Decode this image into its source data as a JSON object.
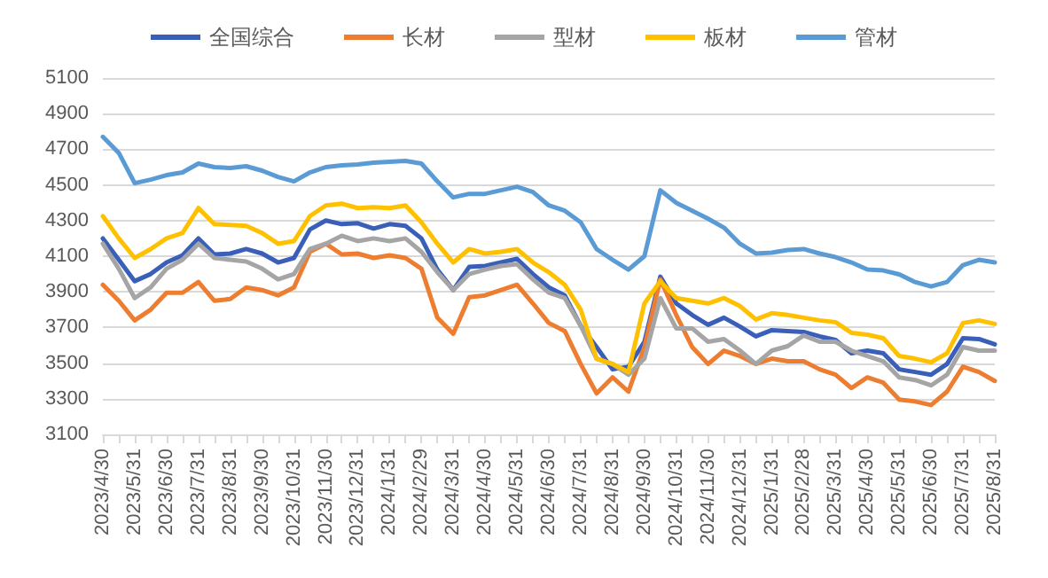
{
  "chart_data": {
    "type": "line",
    "categories": [
      "2023/4/30",
      null,
      "2023/5/31",
      null,
      "2023/6/30",
      null,
      "2023/7/31",
      null,
      "2023/8/31",
      null,
      "2023/9/30",
      null,
      "2023/10/31",
      null,
      "2023/11/30",
      null,
      "2023/12/31",
      null,
      "2024/1/31",
      null,
      "2024/2/29",
      null,
      "2024/3/31",
      null,
      "2024/4/30",
      null,
      "2024/5/31",
      null,
      "2024/6/30",
      null,
      "2024/7/31",
      null,
      "2024/8/31",
      null,
      "2024/9/30",
      null,
      "2024/10/31",
      null,
      "2024/11/30",
      null,
      "2024/12/31",
      null,
      "2025/1/31",
      null,
      "2025/2/28",
      null,
      "2025/3/31",
      null,
      "2025/4/30",
      null,
      "2025/5/31",
      null,
      "2025/6/30",
      null,
      "2025/7/31",
      null,
      "2025/8/31"
    ],
    "series": [
      {
        "name": "全国综合",
        "color": "#3a5fb8",
        "values": [
          4200,
          4080,
          3960,
          4000,
          4065,
          4105,
          4200,
          4110,
          4115,
          4140,
          4115,
          4065,
          4090,
          4250,
          4300,
          4280,
          4285,
          4255,
          4280,
          4270,
          4200,
          4025,
          3910,
          4040,
          4045,
          4065,
          4085,
          4000,
          3925,
          3880,
          3710,
          3590,
          3465,
          3480,
          3620,
          3985,
          3835,
          3770,
          3715,
          3755,
          3705,
          3650,
          3685,
          3680,
          3675,
          3650,
          3630,
          3555,
          3570,
          3555,
          3465,
          3450,
          3435,
          3495,
          3640,
          3635,
          3605
        ]
      },
      {
        "name": "长材",
        "color": "#ed7d31",
        "values": [
          3940,
          3850,
          3740,
          3800,
          3895,
          3895,
          3955,
          3850,
          3860,
          3925,
          3910,
          3880,
          3925,
          4125,
          4170,
          4110,
          4115,
          4090,
          4105,
          4090,
          4030,
          3755,
          3665,
          3870,
          3880,
          3910,
          3940,
          3835,
          3725,
          3680,
          3495,
          3330,
          3420,
          3340,
          3590,
          3970,
          3770,
          3590,
          3495,
          3570,
          3540,
          3495,
          3525,
          3510,
          3510,
          3465,
          3435,
          3360,
          3420,
          3390,
          3295,
          3285,
          3265,
          3340,
          3480,
          3450,
          3400
        ]
      },
      {
        "name": "型材",
        "color": "#a5a5a5",
        "values": [
          4170,
          4030,
          3865,
          3925,
          4030,
          4080,
          4170,
          4090,
          4080,
          4070,
          4030,
          3970,
          4000,
          4140,
          4170,
          4215,
          4185,
          4200,
          4185,
          4200,
          4125,
          4010,
          3910,
          4000,
          4025,
          4045,
          4055,
          3970,
          3895,
          3865,
          3710,
          3525,
          3495,
          3435,
          3525,
          3865,
          3695,
          3695,
          3620,
          3635,
          3570,
          3495,
          3570,
          3595,
          3655,
          3620,
          3620,
          3570,
          3540,
          3510,
          3420,
          3405,
          3375,
          3435,
          3590,
          3570,
          3570
        ]
      },
      {
        "name": "板材",
        "color": "#ffc000",
        "values": [
          4325,
          4200,
          4090,
          4140,
          4200,
          4230,
          4370,
          4280,
          4275,
          4270,
          4230,
          4170,
          4185,
          4325,
          4385,
          4395,
          4370,
          4375,
          4370,
          4385,
          4290,
          4170,
          4065,
          4140,
          4115,
          4125,
          4140,
          4065,
          4010,
          3940,
          3800,
          3525,
          3495,
          3450,
          3835,
          3960,
          3865,
          3850,
          3835,
          3865,
          3820,
          3745,
          3780,
          3770,
          3755,
          3740,
          3730,
          3670,
          3660,
          3640,
          3540,
          3525,
          3505,
          3555,
          3725,
          3740,
          3720
        ]
      },
      {
        "name": "管材",
        "color": "#5b9bd5",
        "values": [
          4770,
          4680,
          4510,
          4530,
          4555,
          4570,
          4620,
          4600,
          4595,
          4605,
          4580,
          4545,
          4520,
          4570,
          4600,
          4610,
          4615,
          4625,
          4630,
          4635,
          4620,
          4520,
          4430,
          4450,
          4450,
          4470,
          4490,
          4460,
          4385,
          4355,
          4290,
          4140,
          4080,
          4025,
          4100,
          4470,
          4400,
          4355,
          4310,
          4260,
          4170,
          4115,
          4120,
          4135,
          4140,
          4115,
          4095,
          4065,
          4025,
          4020,
          3998,
          3955,
          3930,
          3955,
          4050,
          4080,
          4065
        ]
      }
    ],
    "ylim": [
      3100,
      5100
    ],
    "yticks": [
      3100,
      3300,
      3500,
      3700,
      3900,
      4100,
      4300,
      4500,
      4700,
      4900,
      5100
    ],
    "grid": "y",
    "legend": "top",
    "marker": "none",
    "line_style": "solid"
  }
}
